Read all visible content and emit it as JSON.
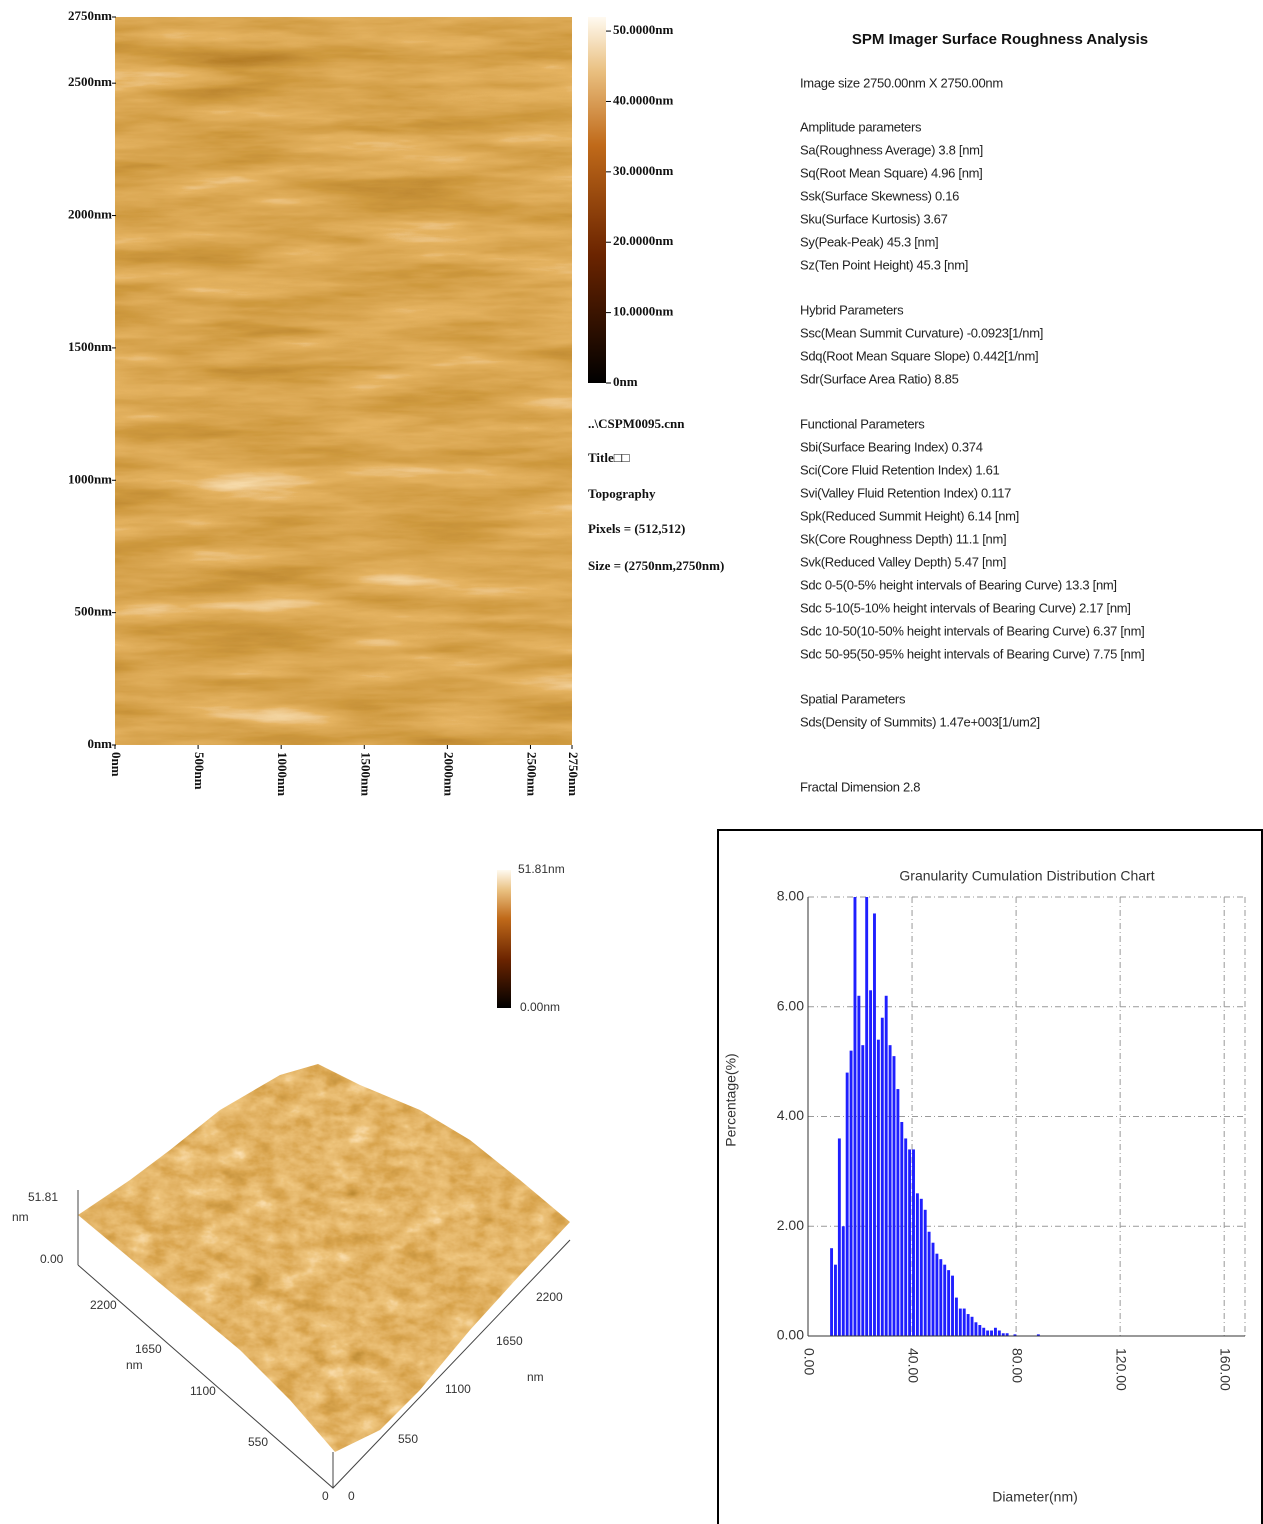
{
  "afm_2d": {
    "xlim": [
      0,
      2750
    ],
    "ylim": [
      0,
      2750
    ],
    "xticks": [
      {
        "value": 0,
        "label": "0nm"
      },
      {
        "value": 500,
        "label": "500nm"
      },
      {
        "value": 1000,
        "label": "1000nm"
      },
      {
        "value": 1500,
        "label": "1500nm"
      },
      {
        "value": 2000,
        "label": "2000nm"
      },
      {
        "value": 2500,
        "label": "2500nm"
      },
      {
        "value": 2750,
        "label": "2750nm"
      }
    ],
    "yticks": [
      {
        "value": 0,
        "label": "0nm"
      },
      {
        "value": 500,
        "label": "500nm"
      },
      {
        "value": 1000,
        "label": "1000nm"
      },
      {
        "value": 1500,
        "label": "1500nm"
      },
      {
        "value": 2000,
        "label": "2000nm"
      },
      {
        "value": 2500,
        "label": "2500nm"
      },
      {
        "value": 2750,
        "label": "2750nm"
      }
    ],
    "colorbar": {
      "ylim": [
        0,
        52
      ],
      "yticks": [
        {
          "value": 0,
          "label": "0nm"
        },
        {
          "value": 10,
          "label": "10.0000nm"
        },
        {
          "value": 20,
          "label": "20.0000nm"
        },
        {
          "value": 30,
          "label": "30.0000nm"
        },
        {
          "value": 40,
          "label": "40.0000nm"
        },
        {
          "value": 50,
          "label": "50.0000nm"
        }
      ]
    },
    "info": [
      "..\\CSPM0095.cnn",
      "Title□□",
      "Topography",
      "Pixels = (512,512)",
      "Size = (2750nm,2750nm)"
    ]
  },
  "roughness": {
    "title": "SPM Imager Surface Roughness Analysis",
    "image_size": "Image size 2750.00nm X 2750.00nm",
    "sections": [
      {
        "heading": "Amplitude parameters",
        "lines": [
          "Sa(Roughness Average)   3.8   [nm]",
          "Sq(Root Mean Square)   4.96   [nm]",
          "Ssk(Surface Skewness)   0.16",
          "Sku(Surface Kurtosis)   3.67",
          "Sy(Peak-Peak)   45.3   [nm]",
          "Sz(Ten Point Height)   45.3   [nm]"
        ]
      },
      {
        "heading": "Hybrid Parameters",
        "lines": [
          "Ssc(Mean Summit Curvature)   -0.0923[1/nm]",
          "Sdq(Root Mean Square Slope)   0.442[1/nm]",
          "Sdr(Surface Area Ratio)   8.85"
        ]
      },
      {
        "heading": "Functional Parameters",
        "lines": [
          "Sbi(Surface Bearing Index)   0.374",
          "Sci(Core Fluid Retention Index)   1.61",
          "Svi(Valley Fluid Retention Index)   0.117",
          "Spk(Reduced Summit Height)   6.14   [nm]",
          "Sk(Core Roughness Depth)   11.1   [nm]",
          "Svk(Reduced Valley Depth)   5.47   [nm]",
          "Sdc 0-5(0-5% height intervals of Bearing Curve)   13.3   [nm]",
          "Sdc 5-10(5-10% height intervals of Bearing Curve)   2.17   [nm]",
          "Sdc 10-50(10-50% height intervals of Bearing Curve)   6.37   [nm]",
          "Sdc 50-95(50-95% height intervals of Bearing Curve)   7.75   [nm]"
        ]
      },
      {
        "heading": "Spatial Parameters",
        "lines": [
          "Sds(Density of Summits)   1.47e+003[1/um2]"
        ]
      }
    ],
    "fractal_dimension": "Fractal Dimension   2.8"
  },
  "surface_3d": {
    "colorbar_max": "51.81nm",
    "colorbar_min": "0.00nm",
    "labels": [
      "51.81",
      "nm",
      "0.00",
      "2200",
      "1650",
      "nm",
      "1100",
      "550",
      "0",
      "0",
      "550",
      "1100",
      "1650",
      "nm",
      "2200"
    ]
  },
  "chart_data": {
    "type": "histogram",
    "title": "Granularity Cumulation Distribution  Chart",
    "x_label": "Diameter(nm)",
    "y_label": "Percentage(%)",
    "color": "#1f1fff",
    "grid": true,
    "bins": [
      8.5,
      10,
      11.5,
      13,
      14.5,
      16,
      17.5,
      19,
      20.5,
      22,
      23.5,
      25,
      26.5,
      28,
      29.5,
      31,
      32.5,
      34,
      35.5,
      37,
      38.5,
      40,
      41.5,
      43,
      44.5,
      46,
      47.5,
      49,
      50.5,
      52,
      53.5,
      55,
      56.5,
      58,
      59.5,
      61,
      62.5,
      64,
      65.5,
      67,
      68.5,
      70,
      71.5,
      73,
      74.5,
      76,
      77.5,
      79,
      80.5,
      82,
      83.5,
      85,
      86.5,
      88,
      89.5
    ],
    "values": [
      1.6,
      1.3,
      3.6,
      2.0,
      4.8,
      5.2,
      8.0,
      6.2,
      5.3,
      8.0,
      6.3,
      7.7,
      5.4,
      5.8,
      6.2,
      5.3,
      5.1,
      4.5,
      3.9,
      3.6,
      3.4,
      3.4,
      2.6,
      2.5,
      2.3,
      1.9,
      1.7,
      1.5,
      1.4,
      1.3,
      1.2,
      1.1,
      0.7,
      0.5,
      0.5,
      0.4,
      0.35,
      0.25,
      0.2,
      0.15,
      0.1,
      0.1,
      0.15,
      0.1,
      0.05,
      0.05,
      0,
      0.03,
      0,
      0,
      0,
      0,
      0,
      0.03
    ],
    "xlim": [
      0,
      168
    ],
    "ylim": [
      0,
      8
    ],
    "xticks": [
      {
        "value": 0,
        "label": "0.00"
      },
      {
        "value": 40,
        "label": "40.00"
      },
      {
        "value": 80,
        "label": "80.00"
      },
      {
        "value": 120,
        "label": "120.00"
      },
      {
        "value": 160,
        "label": "160.00"
      }
    ],
    "yticks": [
      {
        "value": 0,
        "label": "0.00"
      },
      {
        "value": 2,
        "label": "2.00"
      },
      {
        "value": 4,
        "label": "4.00"
      },
      {
        "value": 6,
        "label": "6.00"
      },
      {
        "value": 8,
        "label": "8.00"
      }
    ]
  }
}
